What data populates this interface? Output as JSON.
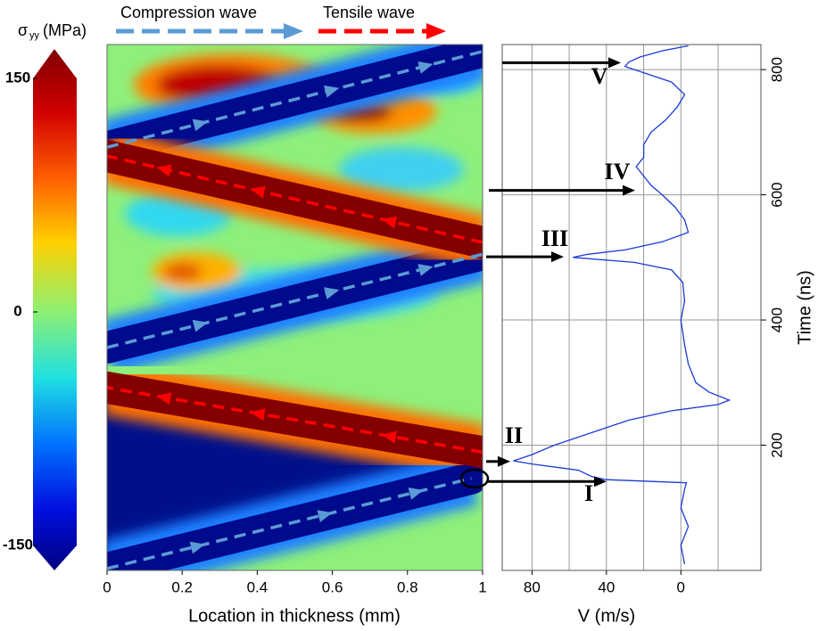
{
  "chart_data": [
    {
      "type": "heatmap",
      "xlabel": "Location in thickness (mm)",
      "xlim": [
        0,
        1
      ],
      "xticks": [
        0,
        0.2,
        0.4,
        0.6,
        0.8,
        1
      ],
      "ylim": [
        0,
        840
      ],
      "colorbar": {
        "symbol": "σ",
        "subscript": "yy",
        "unit": "(MPa)",
        "lim": [
          -150,
          150
        ],
        "ticks": [
          150,
          0,
          -150
        ]
      },
      "series": [
        {
          "name": "Compression wave",
          "color": "#5b9bd5",
          "segments": [
            [
              [
                0,
                3
              ],
              [
                0.97,
                147
              ]
            ],
            [
              [
                0,
                356
              ],
              [
                1,
                505
              ]
            ],
            [
              [
                0,
                676
              ],
              [
                1,
                829
              ]
            ]
          ]
        },
        {
          "name": "Tensile wave",
          "color": "#ff0000",
          "segments": [
            [
              [
                1,
                189
              ],
              [
                0,
                292
              ]
            ],
            [
              [
                1,
                524
              ],
              [
                0,
                662
              ]
            ]
          ]
        }
      ]
    },
    {
      "type": "line",
      "xlabel": "V (m/s)",
      "ylabel": "Time (ns)",
      "xlim": [
        96,
        -43
      ],
      "xticks": [
        80,
        40,
        0
      ],
      "xgrid": [
        60,
        20,
        -20
      ],
      "ylim": [
        0,
        840
      ],
      "yticks": [
        200,
        400,
        600,
        800
      ],
      "grid": true,
      "series": [
        {
          "color": "#1a3ad6",
          "x": [
            10,
            40,
            70,
            100,
            130,
            140,
            145,
            150,
            160,
            170,
            175,
            185,
            200,
            220,
            240,
            255,
            265,
            272,
            285,
            300,
            330,
            360,
            400,
            430,
            460,
            480,
            492,
            500,
            505,
            512,
            525,
            540,
            560,
            580,
            600,
            615,
            630,
            645,
            660,
            680,
            700,
            720,
            740,
            760,
            780,
            795,
            805,
            812,
            820,
            830,
            838
          ],
          "values": [
            -2,
            0,
            -4,
            0,
            -2,
            -3,
            40,
            48,
            55,
            80,
            90,
            80,
            68,
            48,
            28,
            5,
            -20,
            -26,
            -15,
            -8,
            -4,
            -2,
            0,
            -2,
            -1,
            5,
            25,
            58,
            50,
            30,
            10,
            -4,
            -2,
            3,
            10,
            16,
            20,
            24,
            20,
            20,
            16,
            8,
            2,
            -2,
            5,
            20,
            30,
            28,
            22,
            10,
            -4
          ]
        }
      ],
      "annotations": [
        {
          "label": "I",
          "time": 142
        },
        {
          "label": "II",
          "time": 174
        },
        {
          "label": "III",
          "time": 501
        },
        {
          "label": "IV",
          "time": 607
        },
        {
          "label": "V",
          "time": 811
        }
      ]
    }
  ]
}
